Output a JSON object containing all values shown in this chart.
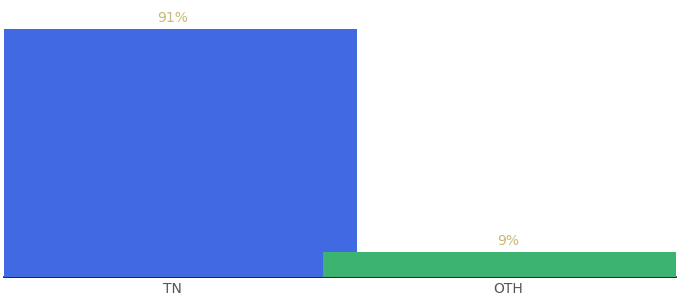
{
  "categories": [
    "TN",
    "OTH"
  ],
  "values": [
    91,
    9
  ],
  "bar_colors": [
    "#4169E1",
    "#3CB371"
  ],
  "label_color": "#c8b87a",
  "ylim": [
    0,
    100
  ],
  "bar_width": 0.55,
  "label_fontsize": 10,
  "tick_fontsize": 10,
  "background_color": "#ffffff",
  "label_format": "{}%",
  "x_positions": [
    0.25,
    0.75
  ]
}
